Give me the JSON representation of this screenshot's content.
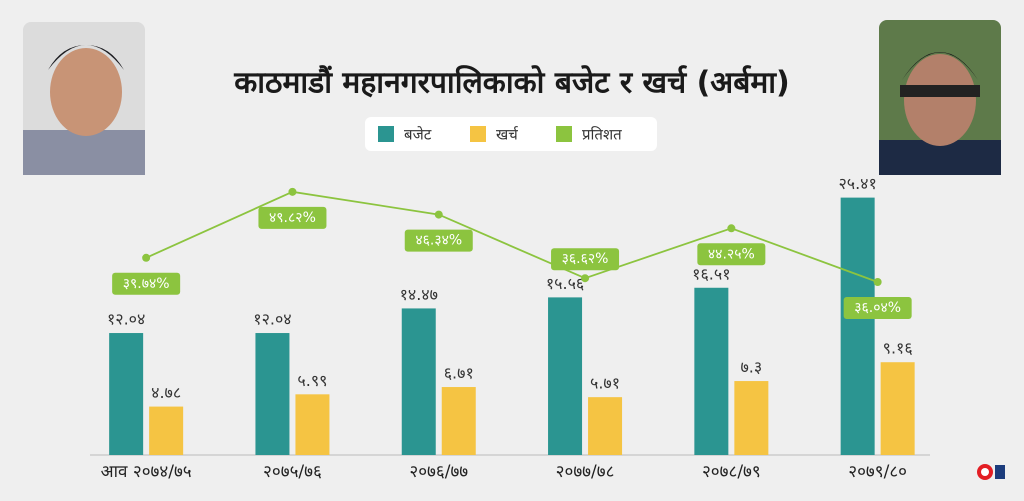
{
  "chart_data": {
    "type": "bar",
    "title": "काठमाडौं महानगरपालिकाको बजेट र खर्च (अर्बमा)",
    "categories": [
      "आव २०७४/७५",
      "२०७५/७६",
      "२०७६/७७",
      "२०७७/७८",
      "२०७८/७९",
      "२०७९/८०"
    ],
    "series": [
      {
        "name": "बजेट",
        "color": "#2b9591",
        "values": [
          12.04,
          12.04,
          14.47,
          15.56,
          16.51,
          25.41
        ],
        "value_labels": [
          "१२.०४",
          "१२.०४",
          "१४.४७",
          "१५.५६",
          "१६.५१",
          "२५.४१"
        ]
      },
      {
        "name": "खर्च",
        "color": "#f5c443",
        "values": [
          4.78,
          5.99,
          6.71,
          5.71,
          7.3,
          9.16
        ],
        "value_labels": [
          "४.७८",
          "५.९९",
          "६.७१",
          "५.७१",
          "७.३",
          "९.१६"
        ]
      },
      {
        "name": "प्रतिशत",
        "color": "#8cc43f",
        "type": "line",
        "axis": "y2",
        "values": [
          39.74,
          49.82,
          46.34,
          36.62,
          44.25,
          36.04
        ],
        "value_labels": [
          "३९.७४%",
          "४९.८२%",
          "४६.३४%",
          "३६.६२%",
          "४४.२५%",
          "३६.०४%"
        ]
      }
    ],
    "ylim": [
      0,
      27
    ],
    "y2lim": [
      9.6,
      51.4
    ],
    "legend": "top"
  }
}
